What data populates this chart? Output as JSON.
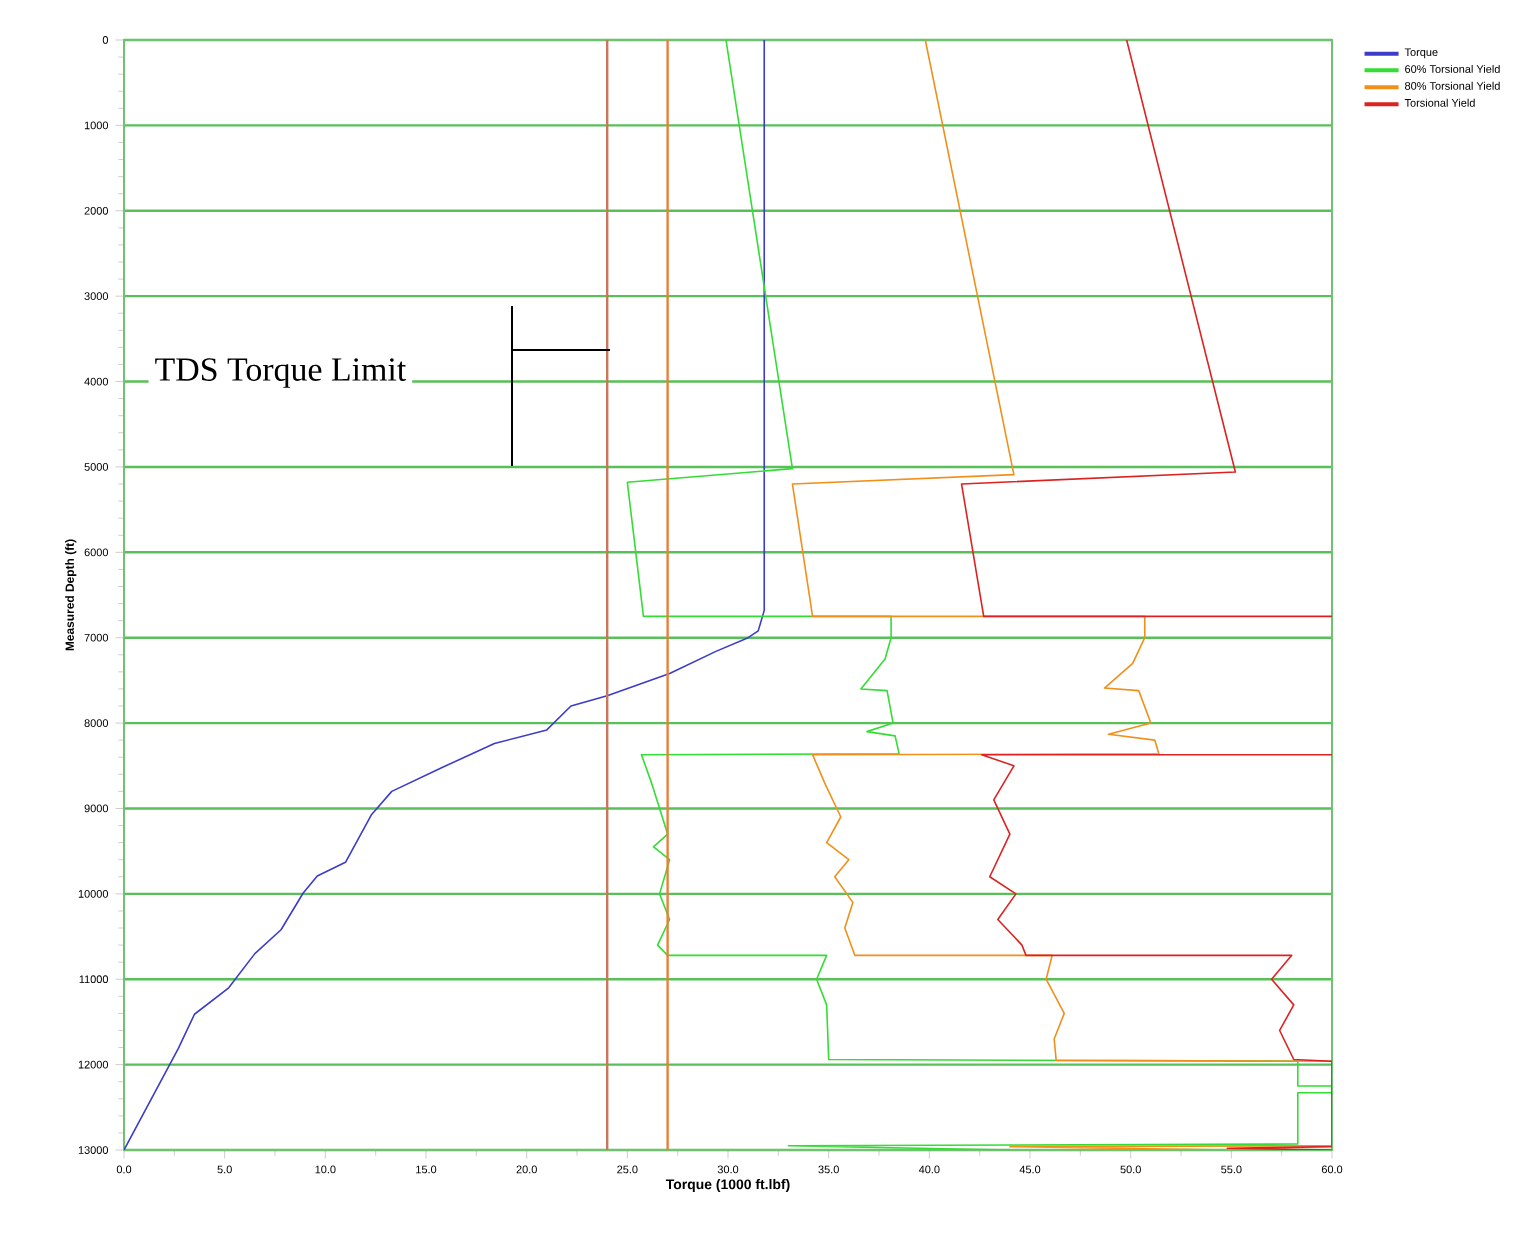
{
  "chart_data": {
    "type": "line",
    "xlabel": "Torque (1000 ft.lbf)",
    "ylabel": "Measured Depth (ft)",
    "xlim": [
      0,
      60
    ],
    "ylim": [
      13000,
      0
    ],
    "xticks": [
      {
        "value": 0,
        "label": "0.0"
      },
      {
        "value": 5,
        "label": "5.0"
      },
      {
        "value": 10,
        "label": "10.0"
      },
      {
        "value": 15,
        "label": "15.0"
      },
      {
        "value": 20,
        "label": "20.0"
      },
      {
        "value": 25,
        "label": "25.0"
      },
      {
        "value": 30,
        "label": "30.0"
      },
      {
        "value": 35,
        "label": "35.0"
      },
      {
        "value": 40,
        "label": "40.0"
      },
      {
        "value": 45,
        "label": "45.0"
      },
      {
        "value": 50,
        "label": "50.0"
      },
      {
        "value": 55,
        "label": "55.0"
      },
      {
        "value": 60,
        "label": "60.0"
      }
    ],
    "yticks": [
      0,
      1000,
      2000,
      3000,
      4000,
      5000,
      6000,
      7000,
      8000,
      9000,
      10000,
      11000,
      12000,
      13000
    ],
    "grid": "y",
    "legend": "top right",
    "series": [
      {
        "name": "Torque",
        "color": "#3c3cc8",
        "x": [
          31.8,
          31.8,
          31.5,
          31.0,
          29.4,
          27.1,
          24.0,
          22.2,
          21.0,
          18.4,
          15.8,
          13.3,
          12.3,
          11.0,
          9.6,
          8.9,
          7.8,
          6.5,
          5.2,
          3.5,
          2.7,
          0
        ],
        "values": [
          0,
          6680,
          6920,
          7000,
          7160,
          7420,
          7680,
          7800,
          8080,
          8240,
          8520,
          8800,
          9070,
          9630,
          9790,
          9990,
          10420,
          10700,
          11100,
          11410,
          11810,
          13000
        ]
      },
      {
        "name": "60% Torsional Yield",
        "color": "#33dd33",
        "x": [
          29.9,
          33.2,
          25.0,
          25.8,
          38.1,
          38.1,
          37.8,
          36.6,
          37.9,
          38.2,
          36.9,
          38.3,
          38.5,
          25.7,
          26.2,
          27.0,
          26.3,
          27.1,
          26.6,
          27.1,
          26.5,
          27.0,
          34.9,
          34.4,
          34.9,
          35.0,
          58.3,
          58.3,
          60,
          60,
          58.3,
          58.3,
          33.0,
          44.0
        ],
        "values": [
          0,
          5020,
          5180,
          6750,
          6750,
          7000,
          7250,
          7600,
          7620,
          8000,
          8100,
          8150,
          8360,
          8370,
          8700,
          9300,
          9450,
          9600,
          10000,
          10300,
          10600,
          10720,
          10720,
          11000,
          11300,
          11940,
          11960,
          12250,
          12250,
          12330,
          12330,
          12930,
          12950,
          13000
        ]
      },
      {
        "name": "80% Torsional Yield",
        "color": "#f0901a",
        "x": [
          39.8,
          44.2,
          33.2,
          34.2,
          50.7,
          50.7,
          50.1,
          48.7,
          50.4,
          51.0,
          48.9,
          51.2,
          51.4,
          34.2,
          34.8,
          35.6,
          34.9,
          36.0,
          35.3,
          36.2,
          35.8,
          36.3,
          46.1,
          45.8,
          46.7,
          46.2,
          46.3,
          60,
          60,
          44.0,
          55.0
        ],
        "values": [
          0,
          5090,
          5200,
          6750,
          6750,
          7000,
          7300,
          7590,
          7620,
          8000,
          8130,
          8200,
          8360,
          8370,
          8700,
          9100,
          9400,
          9600,
          9800,
          10100,
          10400,
          10720,
          10720,
          11000,
          11400,
          11700,
          11950,
          11960,
          12950,
          12960,
          13000
        ]
      },
      {
        "name": "Torsional Yield",
        "color": "#dd2222",
        "x": [
          49.8,
          55.2,
          41.6,
          42.7,
          60,
          null,
          60,
          42.6,
          44.2,
          43.2,
          44.0,
          43.0,
          44.3,
          43.4,
          44.6,
          44.8,
          58.0,
          57.0,
          58.1,
          57.4,
          58.1,
          60,
          60,
          54.8,
          60
        ],
        "values": [
          0,
          5060,
          5200,
          6750,
          6750,
          null,
          8370,
          8370,
          8500,
          8900,
          9300,
          9800,
          10000,
          10300,
          10600,
          10720,
          10720,
          11000,
          11300,
          11600,
          11940,
          11960,
          12960,
          12980,
          13000
        ]
      }
    ],
    "ref_lines": [
      {
        "axis": "x",
        "value": 24,
        "color": "#c8785a"
      },
      {
        "axis": "x",
        "value": 27,
        "color": "#e8803a"
      }
    ],
    "annotations": [
      "TDS Torque Limit"
    ]
  }
}
